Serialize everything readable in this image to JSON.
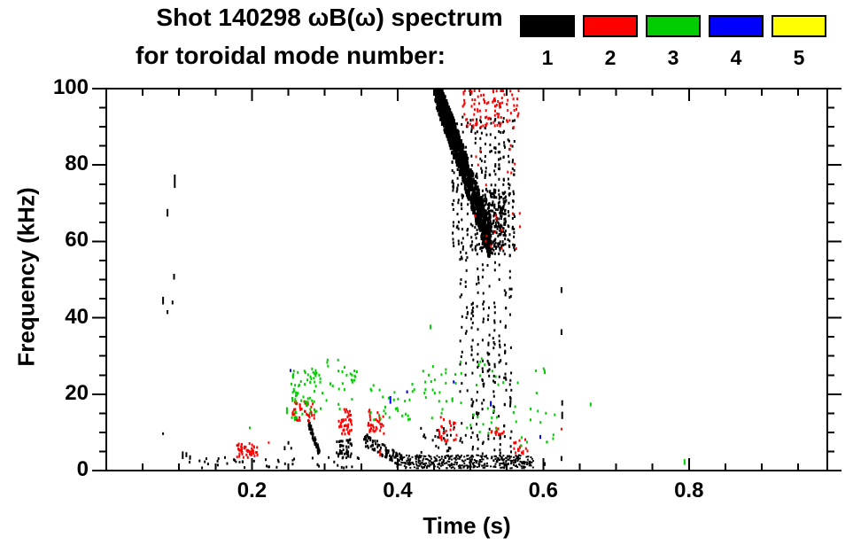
{
  "title": {
    "line1": "Shot 140298 ωB(ω) spectrum",
    "line2": "for toroidal mode number:"
  },
  "legend": {
    "items": [
      {
        "label": "1",
        "color": "#000000"
      },
      {
        "label": "2",
        "color": "#ff0000"
      },
      {
        "label": "3",
        "color": "#00cc00"
      },
      {
        "label": "4",
        "color": "#0000ff"
      },
      {
        "label": "5",
        "color": "#ffff00"
      }
    ]
  },
  "axes": {
    "x_label": "Time (s)",
    "y_label": "Frequency (kHz)"
  },
  "chart_data": {
    "type": "scatter",
    "title": "Shot 140298 ωB(ω) spectrum for toroidal mode number: 1 2 3 4 5",
    "xlabel": "Time (s)",
    "ylabel": "Frequency (kHz)",
    "xlim": [
      0,
      0.99
    ],
    "ylim": [
      0,
      100
    ],
    "x_major_ticks": [
      0.2,
      0.4,
      0.6,
      0.8
    ],
    "x_minor_step": 0.05,
    "y_major_ticks": [
      0,
      20,
      40,
      60,
      80,
      100
    ],
    "y_minor_step": 5,
    "grid": false,
    "legend_position": "top-right",
    "modes": [
      {
        "n": 1,
        "color": "#000000"
      },
      {
        "n": 2,
        "color": "#ff0000"
      },
      {
        "n": 3,
        "color": "#00cc00"
      },
      {
        "n": 4,
        "color": "#0000ff"
      },
      {
        "n": 5,
        "color": "#ffff00",
        "note": "no visible points"
      }
    ],
    "clusters": [
      {
        "mode": 1,
        "pattern": "chirp",
        "t": [
          0.45,
          0.49
        ],
        "f_start": 101,
        "f_end": 80,
        "spread": 3.5,
        "count": 420,
        "size": [
          3,
          4
        ]
      },
      {
        "mode": 1,
        "pattern": "chirp",
        "t": [
          0.452,
          0.526
        ],
        "f_start": 100,
        "f_end": 60,
        "spread": 5,
        "count": 650,
        "size": [
          3,
          4
        ]
      },
      {
        "mode": 1,
        "pattern": "columns",
        "t": [
          0.475,
          0.558
        ],
        "f": [
          58,
          93
        ],
        "cols": 14,
        "count": 330
      },
      {
        "mode": 1,
        "pattern": "scatter",
        "t": [
          0.505,
          0.548
        ],
        "f": [
          57,
          74
        ],
        "count": 260
      },
      {
        "mode": 1,
        "pattern": "columns",
        "t": [
          0.486,
          0.554
        ],
        "f": [
          4,
          58
        ],
        "cols": 10,
        "count": 230
      },
      {
        "mode": 1,
        "pattern": "band",
        "t": [
          0.398,
          0.585
        ],
        "f": [
          0.8,
          4.3
        ],
        "count": 430
      },
      {
        "mode": 1,
        "pattern": "chirp",
        "t": [
          0.352,
          0.405
        ],
        "f_start": 8.5,
        "f_end": 3.0,
        "spread": 1.8,
        "count": 90
      },
      {
        "mode": 1,
        "pattern": "scatter",
        "t": [
          0.1,
          0.35
        ],
        "f": [
          1.0,
          3.8
        ],
        "count": 40
      },
      {
        "mode": 1,
        "pattern": "chirp",
        "t": [
          0.276,
          0.292
        ],
        "f_start": 13.0,
        "f_end": 4.5,
        "spread": 1.2,
        "count": 60
      },
      {
        "mode": 1,
        "pattern": "scatter",
        "t": [
          0.315,
          0.336
        ],
        "f": [
          3.5,
          8.5
        ],
        "count": 50
      },
      {
        "mode": 1,
        "pattern": "scatter",
        "t": [
          0.43,
          0.48
        ],
        "f": [
          5,
          12
        ],
        "count": 22
      },
      {
        "mode": 2,
        "pattern": "scatter",
        "t": [
          0.488,
          0.566
        ],
        "f": [
          90,
          100.5
        ],
        "count": 110
      },
      {
        "mode": 2,
        "pattern": "scatter",
        "t": [
          0.505,
          0.575
        ],
        "f": [
          57,
          86
        ],
        "count": 22
      },
      {
        "mode": 2,
        "pattern": "scatter",
        "t": [
          0.178,
          0.207
        ],
        "f": [
          3.5,
          7.5
        ],
        "count": 55
      },
      {
        "mode": 2,
        "pattern": "scatter",
        "t": [
          0.254,
          0.285
        ],
        "f": [
          13,
          18.5
        ],
        "count": 40
      },
      {
        "mode": 2,
        "pattern": "scatter",
        "t": [
          0.318,
          0.336
        ],
        "f": [
          9.5,
          16.5
        ],
        "count": 45
      },
      {
        "mode": 2,
        "pattern": "scatter",
        "t": [
          0.357,
          0.38
        ],
        "f": [
          10,
          16.5
        ],
        "count": 35
      },
      {
        "mode": 2,
        "pattern": "scatter",
        "t": [
          0.455,
          0.48
        ],
        "f": [
          7.5,
          14.5
        ],
        "count": 30
      },
      {
        "mode": 2,
        "pattern": "scatter",
        "t": [
          0.524,
          0.545
        ],
        "f": [
          9.8,
          11.8
        ],
        "count": 12
      },
      {
        "mode": 2,
        "pattern": "scatter",
        "t": [
          0.558,
          0.578
        ],
        "f": [
          4.5,
          9
        ],
        "count": 18
      },
      {
        "mode": 3,
        "pattern": "scatter",
        "t": [
          0.253,
          0.296
        ],
        "f": [
          13,
          27
        ],
        "count": 70
      },
      {
        "mode": 3,
        "pattern": "scatter",
        "t": [
          0.3,
          0.345
        ],
        "f": [
          15.5,
          30
        ],
        "count": 28
      },
      {
        "mode": 3,
        "pattern": "scatter",
        "t": [
          0.36,
          0.425
        ],
        "f": [
          13.5,
          23
        ],
        "count": 30
      },
      {
        "mode": 3,
        "pattern": "scatter",
        "t": [
          0.428,
          0.48
        ],
        "f": [
          14,
          28
        ],
        "count": 26
      },
      {
        "mode": 3,
        "pattern": "scatter",
        "t": [
          0.483,
          0.545
        ],
        "f": [
          9.5,
          30
        ],
        "count": 26
      },
      {
        "mode": 3,
        "pattern": "scatter",
        "t": [
          0.555,
          0.615
        ],
        "f": [
          5.5,
          28
        ],
        "count": 22
      }
    ],
    "marks": [
      {
        "mode": 1,
        "t": 0.094,
        "f": [
          74,
          77.5
        ]
      },
      {
        "mode": 1,
        "t": 0.084,
        "f": [
          66.5,
          68.5
        ]
      },
      {
        "mode": 1,
        "t": 0.093,
        "f": [
          50,
          51.5
        ]
      },
      {
        "mode": 1,
        "t": 0.078,
        "f": [
          43.5,
          45.5
        ]
      },
      {
        "mode": 1,
        "t": 0.091,
        "f": [
          43.5,
          44.5
        ]
      },
      {
        "mode": 1,
        "t": 0.084,
        "f": [
          41,
          42
        ]
      },
      {
        "mode": 1,
        "t": 0.078,
        "f": [
          9.3,
          10
        ]
      },
      {
        "mode": 1,
        "t": 0.105,
        "f": [
          3,
          5
        ]
      },
      {
        "mode": 1,
        "t": 0.11,
        "f": [
          3.5,
          4.8
        ]
      },
      {
        "mode": 1,
        "t": 0.115,
        "f": [
          3,
          4
        ]
      },
      {
        "mode": 1,
        "t": 0.178,
        "f": [
          2,
          2.6
        ]
      },
      {
        "mode": 1,
        "t": 0.183,
        "f": [
          1.9,
          2.5
        ]
      },
      {
        "mode": 1,
        "t": 0.187,
        "f": [
          2,
          2.7
        ]
      },
      {
        "mode": 1,
        "t": 0.245,
        "f": [
          5.3,
          6.4
        ]
      },
      {
        "mode": 1,
        "t": 0.25,
        "f": [
          6.8,
          7.7
        ]
      },
      {
        "mode": 1,
        "t": 0.254,
        "f": [
          5.5,
          6.2
        ]
      },
      {
        "mode": 1,
        "t": 0.256,
        "f": [
          2.4,
          3
        ]
      },
      {
        "mode": 1,
        "t": 0.625,
        "f": [
          46.5,
          48
        ]
      },
      {
        "mode": 1,
        "t": 0.625,
        "f": [
          35.5,
          37
        ]
      },
      {
        "mode": 1,
        "t": 0.626,
        "f": [
          17,
          18.4
        ]
      },
      {
        "mode": 1,
        "t": 0.626,
        "f": [
          13.5,
          15.4
        ]
      },
      {
        "mode": 1,
        "t": 0.625,
        "f": [
          2.5,
          3.8
        ]
      },
      {
        "mode": 1,
        "t": 0.602,
        "f": [
          1.2,
          2.2
        ]
      },
      {
        "mode": 2,
        "t": 0.223,
        "f": [
          7,
          7.6
        ]
      },
      {
        "mode": 2,
        "t": 0.256,
        "f": [
          14.3,
          15
        ]
      },
      {
        "mode": 2,
        "t": 0.376,
        "f": [
          3.7,
          5.3
        ]
      },
      {
        "mode": 2,
        "t": 0.465,
        "f": [
          7.6,
          8.4
        ]
      },
      {
        "mode": 2,
        "t": 0.625,
        "f": [
          10.5,
          11.2
        ]
      },
      {
        "mode": 3,
        "t": 0.197,
        "f": [
          10.8,
          11.5
        ]
      },
      {
        "mode": 3,
        "t": 0.248,
        "f": [
          14.8,
          16.6
        ]
      },
      {
        "mode": 3,
        "t": 0.445,
        "f": [
          37,
          38.2
        ]
      },
      {
        "mode": 3,
        "t": 0.665,
        "f": [
          16.8,
          17.8
        ]
      },
      {
        "mode": 3,
        "t": 0.794,
        "f": [
          1.5,
          3
        ]
      },
      {
        "mode": 4,
        "t": 0.253,
        "f": [
          25.8,
          26.6
        ]
      },
      {
        "mode": 4,
        "t": 0.39,
        "f": [
          17.5,
          19.5
        ]
      },
      {
        "mode": 4,
        "t": 0.413,
        "f": [
          20.2,
          21
        ]
      },
      {
        "mode": 4,
        "t": 0.477,
        "f": [
          22.8,
          23.6
        ]
      },
      {
        "mode": 4,
        "t": 0.528,
        "f": [
          16.8,
          18.2
        ]
      },
      {
        "mode": 4,
        "t": 0.596,
        "f": [
          8.3,
          9.3
        ]
      }
    ]
  }
}
